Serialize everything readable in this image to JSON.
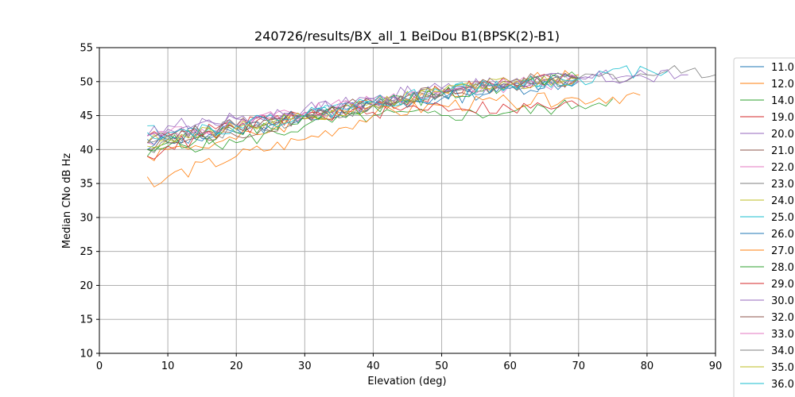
{
  "chart_data": {
    "type": "line",
    "title": "240726/results/BX_all_1 BeiDou B1(BPSK(2)-B1)",
    "xlabel": "Elevation (deg)",
    "ylabel": "Median CNo dB Hz",
    "xlim": [
      0,
      90
    ],
    "ylim": [
      10,
      55
    ],
    "xticks": [
      "0",
      "10",
      "20",
      "30",
      "40",
      "50",
      "60",
      "70",
      "80",
      "90"
    ],
    "yticks": [
      "10",
      "15",
      "20",
      "25",
      "30",
      "35",
      "40",
      "45",
      "50",
      "55"
    ],
    "grid": true,
    "legend_position": "right, outside plot",
    "series": [
      {
        "name": "11.0",
        "color": "#1f77b4",
        "x": [
          7,
          10,
          20,
          30,
          40,
          50,
          60,
          70
        ],
        "y": [
          41.5,
          41.0,
          42.5,
          45.0,
          46.5,
          48.0,
          49.5,
          50.5
        ]
      },
      {
        "name": "12.0",
        "color": "#ff7f0e",
        "x": [
          7,
          10,
          20,
          30,
          40,
          50,
          60,
          70
        ],
        "y": [
          39.0,
          40.0,
          41.5,
          44.5,
          46.5,
          48.5,
          50.0,
          51.0
        ]
      },
      {
        "name": "14.0",
        "color": "#2ca02c",
        "x": [
          7,
          10,
          20,
          30,
          40,
          50,
          60,
          70,
          75
        ],
        "y": [
          39.0,
          40.5,
          41.0,
          43.5,
          45.0,
          45.0,
          45.5,
          46.5,
          47.5
        ]
      },
      {
        "name": "19.0",
        "color": "#d62728",
        "x": [
          7,
          10,
          20,
          30,
          40,
          50,
          60,
          70
        ],
        "y": [
          42.0,
          42.5,
          43.5,
          45.0,
          46.5,
          48.5,
          50.0,
          50.5
        ]
      },
      {
        "name": "20.0",
        "color": "#9467bd",
        "x": [
          7,
          10,
          20,
          30,
          40,
          50,
          60,
          70,
          80
        ],
        "y": [
          42.0,
          43.0,
          44.5,
          45.5,
          47.5,
          49.0,
          50.0,
          50.5,
          51.0
        ]
      },
      {
        "name": "21.0",
        "color": "#8c564b",
        "x": [
          7,
          10,
          20,
          30,
          40,
          50,
          60,
          70
        ],
        "y": [
          40.0,
          41.0,
          42.0,
          45.0,
          46.5,
          48.0,
          49.5,
          50.0
        ]
      },
      {
        "name": "22.0",
        "color": "#e377c2",
        "x": [
          7,
          10,
          20,
          30,
          40,
          50,
          60,
          70
        ],
        "y": [
          41.0,
          42.0,
          43.5,
          45.5,
          47.0,
          48.5,
          49.5,
          50.5
        ]
      },
      {
        "name": "23.0",
        "color": "#7f7f7f",
        "x": [
          7,
          10,
          20,
          30,
          40,
          50,
          60,
          70,
          80,
          87,
          90
        ],
        "y": [
          40.0,
          41.5,
          43.0,
          44.5,
          46.5,
          48.0,
          49.5,
          50.5,
          51.0,
          52.0,
          51.0
        ]
      },
      {
        "name": "24.0",
        "color": "#bcbd22",
        "x": [
          7,
          10,
          20,
          30,
          40,
          50,
          60,
          70
        ],
        "y": [
          41.0,
          42.0,
          43.0,
          45.0,
          47.0,
          48.5,
          50.0,
          50.5
        ]
      },
      {
        "name": "25.0",
        "color": "#17becf",
        "x": [
          7,
          10,
          20,
          30,
          40,
          50,
          60,
          70,
          80,
          83
        ],
        "y": [
          43.5,
          42.0,
          43.5,
          45.0,
          47.0,
          48.5,
          49.5,
          50.5,
          51.8,
          51.5
        ]
      },
      {
        "name": "26.0",
        "color": "#1f77b4",
        "x": [
          7,
          10,
          20,
          30,
          40,
          50,
          60,
          70
        ],
        "y": [
          40.0,
          41.5,
          43.0,
          45.0,
          46.5,
          47.5,
          49.0,
          50.0
        ]
      },
      {
        "name": "27.0",
        "color": "#ff7f0e",
        "x": [
          7,
          8,
          10,
          20,
          30,
          40,
          50,
          60,
          70,
          79
        ],
        "y": [
          36.0,
          34.5,
          36.0,
          39.0,
          41.5,
          45.0,
          46.5,
          47.0,
          47.5,
          48.0
        ]
      },
      {
        "name": "28.0",
        "color": "#2ca02c",
        "x": [
          7,
          10,
          20,
          30,
          40,
          50,
          60,
          70
        ],
        "y": [
          40.0,
          41.0,
          42.5,
          45.0,
          46.5,
          48.0,
          49.5,
          50.5
        ]
      },
      {
        "name": "29.0",
        "color": "#d62728",
        "x": [
          7,
          10,
          20,
          30,
          40,
          50,
          60,
          70
        ],
        "y": [
          39.0,
          40.5,
          43.0,
          45.0,
          45.5,
          46.5,
          46.0,
          46.5
        ]
      },
      {
        "name": "30.0",
        "color": "#9467bd",
        "x": [
          7,
          10,
          20,
          30,
          40,
          50,
          60,
          70,
          80,
          86
        ],
        "y": [
          42.0,
          43.5,
          44.5,
          46.0,
          47.5,
          49.0,
          50.0,
          50.5,
          50.5,
          51.0
        ]
      },
      {
        "name": "32.0",
        "color": "#8c564b",
        "x": [
          7,
          10,
          20,
          30,
          40,
          50,
          60,
          70
        ],
        "y": [
          41.0,
          42.0,
          43.5,
          45.0,
          47.0,
          48.5,
          50.0,
          50.5
        ]
      },
      {
        "name": "33.0",
        "color": "#e377c2",
        "x": [
          7,
          10,
          20,
          30,
          40,
          50,
          60,
          70
        ],
        "y": [
          42.0,
          42.5,
          43.5,
          45.5,
          47.0,
          48.5,
          49.5,
          50.0
        ]
      },
      {
        "name": "34.0",
        "color": "#7f7f7f",
        "x": [
          7,
          10,
          20,
          30,
          40,
          50,
          60,
          70
        ],
        "y": [
          41.0,
          42.0,
          43.5,
          45.0,
          46.5,
          48.0,
          49.5,
          50.5
        ]
      },
      {
        "name": "35.0",
        "color": "#bcbd22",
        "x": [
          7,
          10,
          20,
          30,
          40,
          50,
          60,
          70
        ],
        "y": [
          40.5,
          41.5,
          43.0,
          44.5,
          46.5,
          48.5,
          49.5,
          50.5
        ]
      },
      {
        "name": "36.0",
        "color": "#17becf",
        "x": [
          7,
          10,
          20,
          30,
          40,
          50,
          60,
          70
        ],
        "y": [
          42.5,
          42.5,
          43.5,
          45.0,
          47.0,
          48.5,
          49.5,
          50.5
        ]
      }
    ]
  }
}
